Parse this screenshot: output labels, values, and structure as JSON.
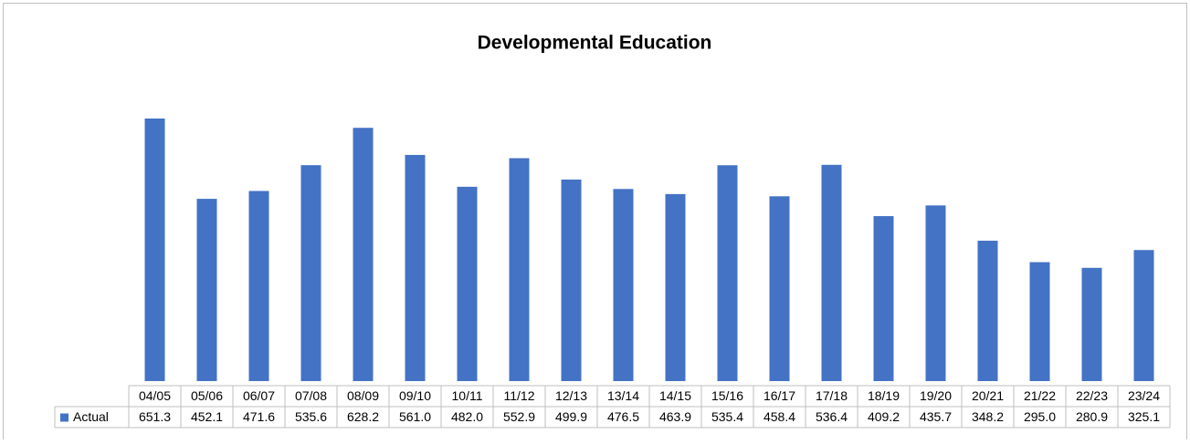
{
  "chart_data": {
    "type": "bar",
    "title": "Developmental Education",
    "categories": [
      "04/05",
      "05/06",
      "06/07",
      "07/08",
      "08/09",
      "09/10",
      "10/11",
      "11/12",
      "12/13",
      "13/14",
      "14/15",
      "15/16",
      "16/17",
      "17/18",
      "18/19",
      "19/20",
      "20/21",
      "21/22",
      "22/23",
      "23/24"
    ],
    "series": [
      {
        "name": "Actual",
        "color": "#4472c4",
        "values": [
          651.3,
          452.1,
          471.6,
          535.6,
          628.2,
          561.0,
          482.0,
          552.9,
          499.9,
          476.5,
          463.9,
          535.4,
          458.4,
          536.4,
          409.2,
          435.7,
          348.2,
          295.0,
          280.9,
          325.1
        ],
        "value_labels": [
          "651.3",
          "452.1",
          "471.6",
          "535.6",
          "628.2",
          "561.0",
          "482.0",
          "552.9",
          "499.9",
          "476.5",
          "463.9",
          "535.4",
          "458.4",
          "536.4",
          "409.2",
          "435.7",
          "348.2",
          "295.0",
          "280.9",
          "325.1"
        ]
      }
    ],
    "data_table": true
  }
}
